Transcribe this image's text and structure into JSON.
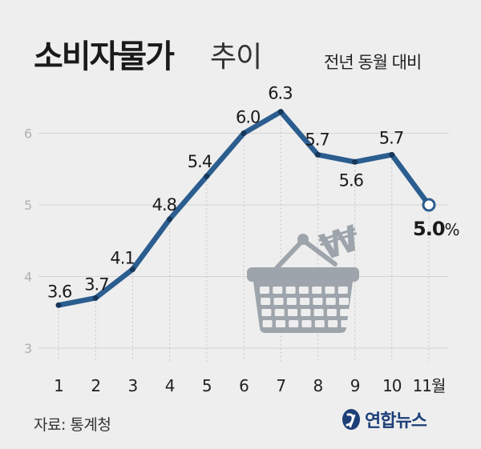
{
  "title": "소비자물가",
  "title_suffix": "추이",
  "subtitle": "전년 동월 대비",
  "source": "자료: 통계청",
  "logo_text": "연합뉴스",
  "colors": {
    "line": "#2b5d8f",
    "grid": "#d4d4d4",
    "basket": "#9ea4ab",
    "axis_text": "#b0b0b0",
    "background": "#eeeeee"
  },
  "icons": [
    "shopping-basket-icon",
    "won-sign-icon",
    "yonhap-logo-icon"
  ],
  "chart_data": {
    "type": "line",
    "categories": [
      "1",
      "2",
      "3",
      "4",
      "5",
      "6",
      "7",
      "8",
      "9",
      "10",
      "11월"
    ],
    "values": [
      3.6,
      3.7,
      4.1,
      4.8,
      5.4,
      6.0,
      6.3,
      5.7,
      5.6,
      5.7,
      5.0
    ],
    "value_labels": [
      "3.6",
      "3.7",
      "4.1",
      "4.8",
      "5.4",
      "6.0",
      "6.3",
      "5.7",
      "5.6",
      "5.7",
      "5.0"
    ],
    "last_unit": "%",
    "yticks": [
      "3",
      "4",
      "5",
      "6"
    ],
    "ylim": [
      3,
      6.5
    ],
    "grid": true,
    "legend": "none"
  }
}
